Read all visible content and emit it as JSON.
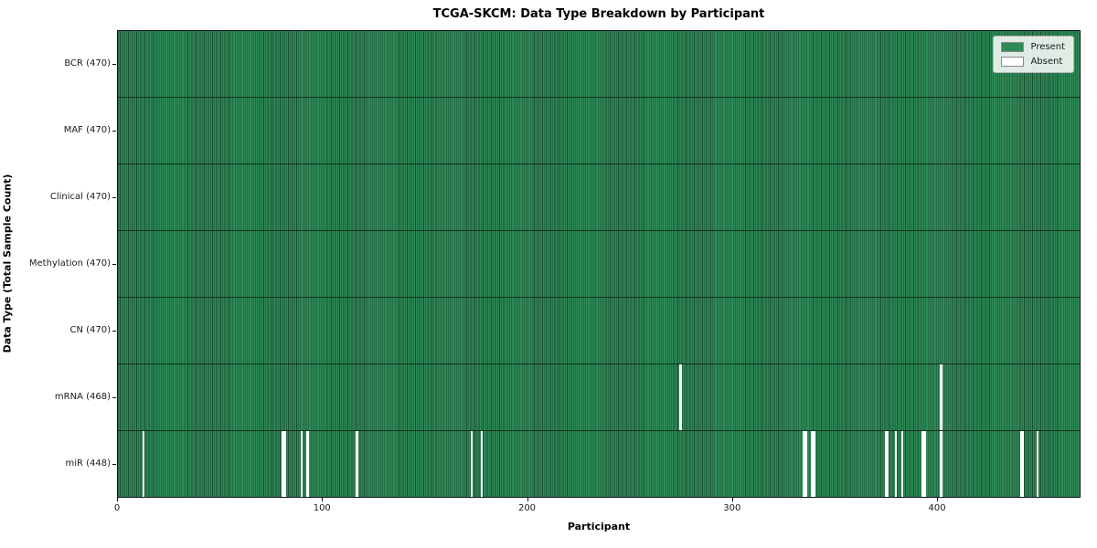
{
  "chart_data": {
    "type": "heatmap",
    "title": "TCGA-SKCM: Data Type Breakdown by Participant",
    "xlabel": "Participant",
    "ylabel": "Data Type (Total Sample Count)",
    "n_participants": 470,
    "x_ticks": [
      0,
      100,
      200,
      300,
      400
    ],
    "grid": false,
    "legend_position": "upper right",
    "legend": [
      {
        "label": "Present",
        "color": "#2e8b57"
      },
      {
        "label": "Absent",
        "color": "#ffffff"
      }
    ],
    "colors": {
      "present": "#2e8b57",
      "absent": "#ffffff",
      "cell_edge": "rgba(0,0,0,0.45)",
      "row_edge": "rgba(0,0,0,0.6)"
    },
    "rows": [
      {
        "label": "BCR (470)",
        "name": "BCR",
        "present_count": 470,
        "absent_participants": []
      },
      {
        "label": "MAF (470)",
        "name": "MAF",
        "present_count": 470,
        "absent_participants": []
      },
      {
        "label": "Clinical (470)",
        "name": "Clinical",
        "present_count": 470,
        "absent_participants": []
      },
      {
        "label": "Methylation (470)",
        "name": "Methylation",
        "present_count": 470,
        "absent_participants": []
      },
      {
        "label": "CN (470)",
        "name": "CN",
        "present_count": 470,
        "absent_participants": []
      },
      {
        "label": "mRNA (468)",
        "name": "mRNA",
        "present_count": 468,
        "absent_participants": [
          274,
          401
        ]
      },
      {
        "label": "miR (448)",
        "name": "miR",
        "present_count": 448,
        "absent_participants": [
          12,
          80,
          81,
          89,
          92,
          116,
          172,
          177,
          334,
          335,
          338,
          339,
          374,
          375,
          379,
          382,
          392,
          393,
          401,
          440,
          441,
          448
        ]
      }
    ]
  }
}
